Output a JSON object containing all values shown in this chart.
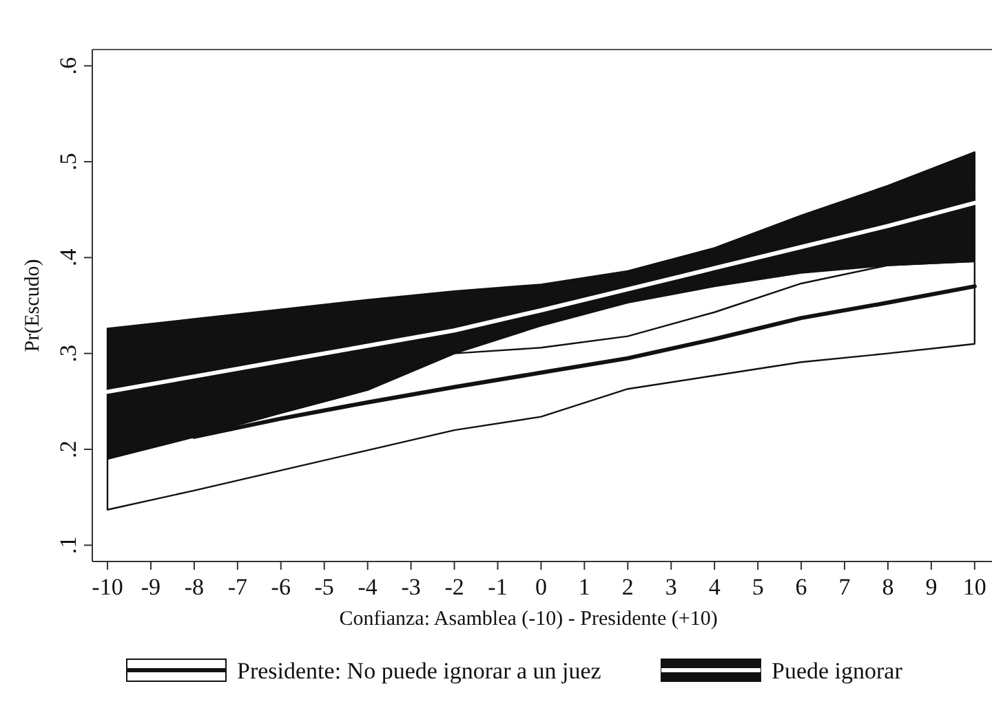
{
  "chart_data": {
    "type": "line",
    "xlabel": "Confianza: Asamblea (-10) - Presidente (+10)",
    "ylabel": "Pr(Escudo)",
    "xlim": [
      -10.35,
      10.4
    ],
    "xticks": [
      -10,
      -9,
      -8,
      -7,
      -6,
      -5,
      -4,
      -3,
      -2,
      -1,
      0,
      1,
      2,
      3,
      4,
      5,
      6,
      7,
      8,
      9,
      10
    ],
    "ylim": [
      0.083,
      0.617
    ],
    "yticks": [
      {
        "value": 0.1,
        "label": ".1"
      },
      {
        "value": 0.2,
        "label": ".2"
      },
      {
        "value": 0.3,
        "label": ".3"
      },
      {
        "value": 0.4,
        "label": ".4"
      },
      {
        "value": 0.5,
        "label": ".5"
      },
      {
        "value": 0.6,
        "label": ".6"
      }
    ],
    "grid": false,
    "legend": "bottom",
    "marker": "none",
    "line_style": "solid",
    "x": [
      -10,
      -8,
      -6,
      -4,
      -2,
      0,
      2,
      4,
      6,
      8,
      10
    ],
    "series": [
      {
        "name": "Presidente: No puede ignorar a un juez",
        "color": "#111111",
        "values": [
          null,
          0.213,
          0.232,
          0.249,
          0.265,
          0.28,
          0.295,
          0.315,
          0.337,
          0.353,
          0.37
        ],
        "lower": [
          0.137,
          0.157,
          0.178,
          0.199,
          0.22,
          0.234,
          0.263,
          0.277,
          0.291,
          0.3,
          0.31
        ],
        "upper": [
          0.19,
          0.213,
          0.238,
          0.262,
          0.3,
          0.306,
          0.318,
          0.343,
          0.373,
          0.392,
          0.396
        ]
      },
      {
        "name": "Puede ignorar",
        "color": "#ffffff",
        "values": [
          0.26,
          0.276,
          0.292,
          0.308,
          0.324,
          0.345,
          0.367,
          0.389,
          0.411,
          0.433,
          0.457
        ],
        "lower": [
          0.19,
          0.213,
          0.238,
          0.262,
          0.3,
          0.329,
          0.353,
          0.37,
          0.384,
          0.392,
          0.396
        ],
        "upper": [
          0.326,
          0.336,
          0.346,
          0.356,
          0.365,
          0.372,
          0.386,
          0.41,
          0.444,
          0.475,
          0.51
        ]
      }
    ]
  }
}
